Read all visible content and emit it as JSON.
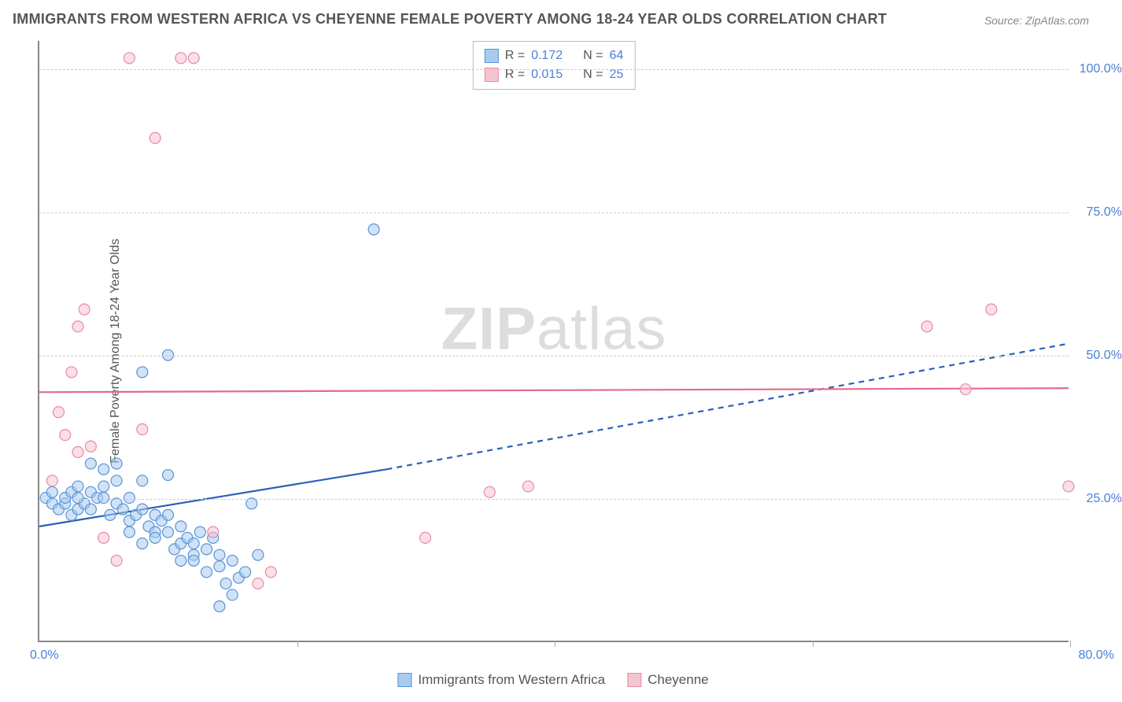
{
  "title": "IMMIGRANTS FROM WESTERN AFRICA VS CHEYENNE FEMALE POVERTY AMONG 18-24 YEAR OLDS CORRELATION CHART",
  "source": "Source: ZipAtlas.com",
  "ylabel": "Female Poverty Among 18-24 Year Olds",
  "watermark_bold": "ZIP",
  "watermark_light": "atlas",
  "chart": {
    "type": "scatter-correlation",
    "background_color": "#ffffff",
    "grid_color": "#cccccc",
    "axis_color": "#888888",
    "xlim": [
      0,
      80
    ],
    "ylim": [
      0,
      105
    ],
    "x_ticks": [
      0,
      20,
      40,
      60,
      80
    ],
    "y_gridlines": [
      25,
      50,
      75,
      100
    ],
    "y_tick_labels": [
      "25.0%",
      "50.0%",
      "75.0%",
      "100.0%"
    ],
    "x_origin_label": "0.0%",
    "x_max_label": "80.0%",
    "tick_label_color": "#4a7fd8",
    "tick_label_fontsize": 16,
    "ylabel_fontsize": 16,
    "title_fontsize": 18,
    "marker_radius": 7,
    "marker_opacity": 0.55,
    "line_width": 2.2,
    "series": [
      {
        "name": "Immigrants from Western Africa",
        "fill_color": "#a9cbee",
        "stroke_color": "#5a94d6",
        "line_color": "#2a5fb8",
        "r_value": "0.172",
        "n_value": "64",
        "trend": {
          "x1": 0,
          "y1": 20,
          "x2_solid": 27,
          "y2_solid": 30,
          "x2_dash": 80,
          "y2_dash": 52
        },
        "points": [
          [
            0.5,
            25
          ],
          [
            1,
            24
          ],
          [
            1.5,
            23
          ],
          [
            1,
            26
          ],
          [
            2,
            24
          ],
          [
            2,
            25
          ],
          [
            2.5,
            22
          ],
          [
            2.5,
            26
          ],
          [
            3,
            23
          ],
          [
            3,
            27
          ],
          [
            3.5,
            24
          ],
          [
            3,
            25
          ],
          [
            4,
            26
          ],
          [
            4,
            23
          ],
          [
            4.5,
            25
          ],
          [
            4,
            31
          ],
          [
            5,
            27
          ],
          [
            5,
            25
          ],
          [
            5.5,
            22
          ],
          [
            5,
            30
          ],
          [
            6,
            24
          ],
          [
            6,
            28
          ],
          [
            6.5,
            23
          ],
          [
            6,
            31
          ],
          [
            7,
            25
          ],
          [
            7,
            21
          ],
          [
            7.5,
            22
          ],
          [
            7,
            19
          ],
          [
            8,
            23
          ],
          [
            8,
            28
          ],
          [
            8.5,
            20
          ],
          [
            8,
            17
          ],
          [
            9,
            19
          ],
          [
            9,
            22
          ],
          [
            9.5,
            21
          ],
          [
            9,
            18
          ],
          [
            10,
            22
          ],
          [
            10,
            19
          ],
          [
            10.5,
            16
          ],
          [
            10,
            29
          ],
          [
            11,
            20
          ],
          [
            11,
            17
          ],
          [
            11.5,
            18
          ],
          [
            11,
            14
          ],
          [
            12,
            15
          ],
          [
            12,
            17
          ],
          [
            12.5,
            19
          ],
          [
            12,
            14
          ],
          [
            13,
            16
          ],
          [
            13,
            12
          ],
          [
            13.5,
            18
          ],
          [
            14,
            13
          ],
          [
            14.5,
            10
          ],
          [
            14,
            15
          ],
          [
            15,
            14
          ],
          [
            15.5,
            11
          ],
          [
            15,
            8
          ],
          [
            16,
            12
          ],
          [
            16.5,
            24
          ],
          [
            17,
            15
          ],
          [
            8,
            47
          ],
          [
            10,
            50
          ],
          [
            26,
            72
          ],
          [
            14,
            6
          ]
        ]
      },
      {
        "name": "Cheyenne",
        "fill_color": "#f5c4d1",
        "stroke_color": "#e88aa5",
        "line_color": "#e06b8f",
        "r_value": "0.015",
        "n_value": "25",
        "trend": {
          "x1": 0,
          "y1": 43.5,
          "x2_solid": 80,
          "y2_solid": 44.2,
          "x2_dash": 80,
          "y2_dash": 44.2
        },
        "points": [
          [
            1,
            28
          ],
          [
            1.5,
            40
          ],
          [
            2,
            36
          ],
          [
            2.5,
            47
          ],
          [
            3,
            33
          ],
          [
            3,
            55
          ],
          [
            3.5,
            58
          ],
          [
            4,
            34
          ],
          [
            5,
            18
          ],
          [
            6,
            14
          ],
          [
            7,
            102
          ],
          [
            8,
            37
          ],
          [
            9,
            88
          ],
          [
            11,
            102
          ],
          [
            12,
            102
          ],
          [
            13.5,
            19
          ],
          [
            17,
            10
          ],
          [
            18,
            12
          ],
          [
            30,
            18
          ],
          [
            35,
            26
          ],
          [
            38,
            27
          ],
          [
            69,
            55
          ],
          [
            72,
            44
          ],
          [
            74,
            58
          ],
          [
            80,
            27
          ]
        ]
      }
    ]
  },
  "legend_corr": {
    "r_label": "R = ",
    "n_label": "N = "
  },
  "legend_bottom": {
    "series1_label": "Immigrants from Western Africa",
    "series2_label": "Cheyenne"
  }
}
